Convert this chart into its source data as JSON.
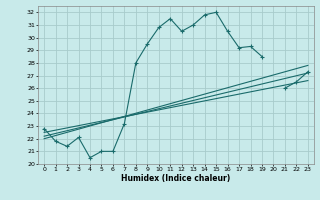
{
  "title": "",
  "xlabel": "Humidex (Indice chaleur)",
  "background_color": "#c8eaea",
  "grid_color": "#a8cccc",
  "line_color": "#1a6b6b",
  "xlim": [
    -0.5,
    23.5
  ],
  "ylim": [
    20,
    32.5
  ],
  "xticks": [
    0,
    1,
    2,
    3,
    4,
    5,
    6,
    7,
    8,
    9,
    10,
    11,
    12,
    13,
    14,
    15,
    16,
    17,
    18,
    19,
    20,
    21,
    22,
    23
  ],
  "yticks": [
    20,
    21,
    22,
    23,
    24,
    25,
    26,
    27,
    28,
    29,
    30,
    31,
    32
  ],
  "line_main": {
    "x": [
      0,
      1,
      2,
      3,
      4,
      5,
      6,
      7,
      8,
      9,
      10,
      11,
      12,
      13,
      14,
      15,
      16,
      17,
      18,
      19,
      20,
      21,
      22,
      23
    ],
    "y": [
      22.8,
      21.8,
      21.4,
      22.1,
      20.5,
      21.0,
      21.0,
      23.2,
      28.0,
      29.5,
      30.8,
      31.5,
      30.5,
      31.0,
      31.8,
      32.0,
      30.5,
      29.2,
      29.3,
      28.5,
      null,
      26.0,
      26.5,
      27.3
    ]
  },
  "line_reg1": {
    "x": [
      0,
      23
    ],
    "y": [
      22.0,
      27.8
    ]
  },
  "line_reg2": {
    "x": [
      0,
      23
    ],
    "y": [
      22.2,
      27.2
    ]
  },
  "line_reg3": {
    "x": [
      0,
      23
    ],
    "y": [
      22.5,
      26.6
    ]
  }
}
